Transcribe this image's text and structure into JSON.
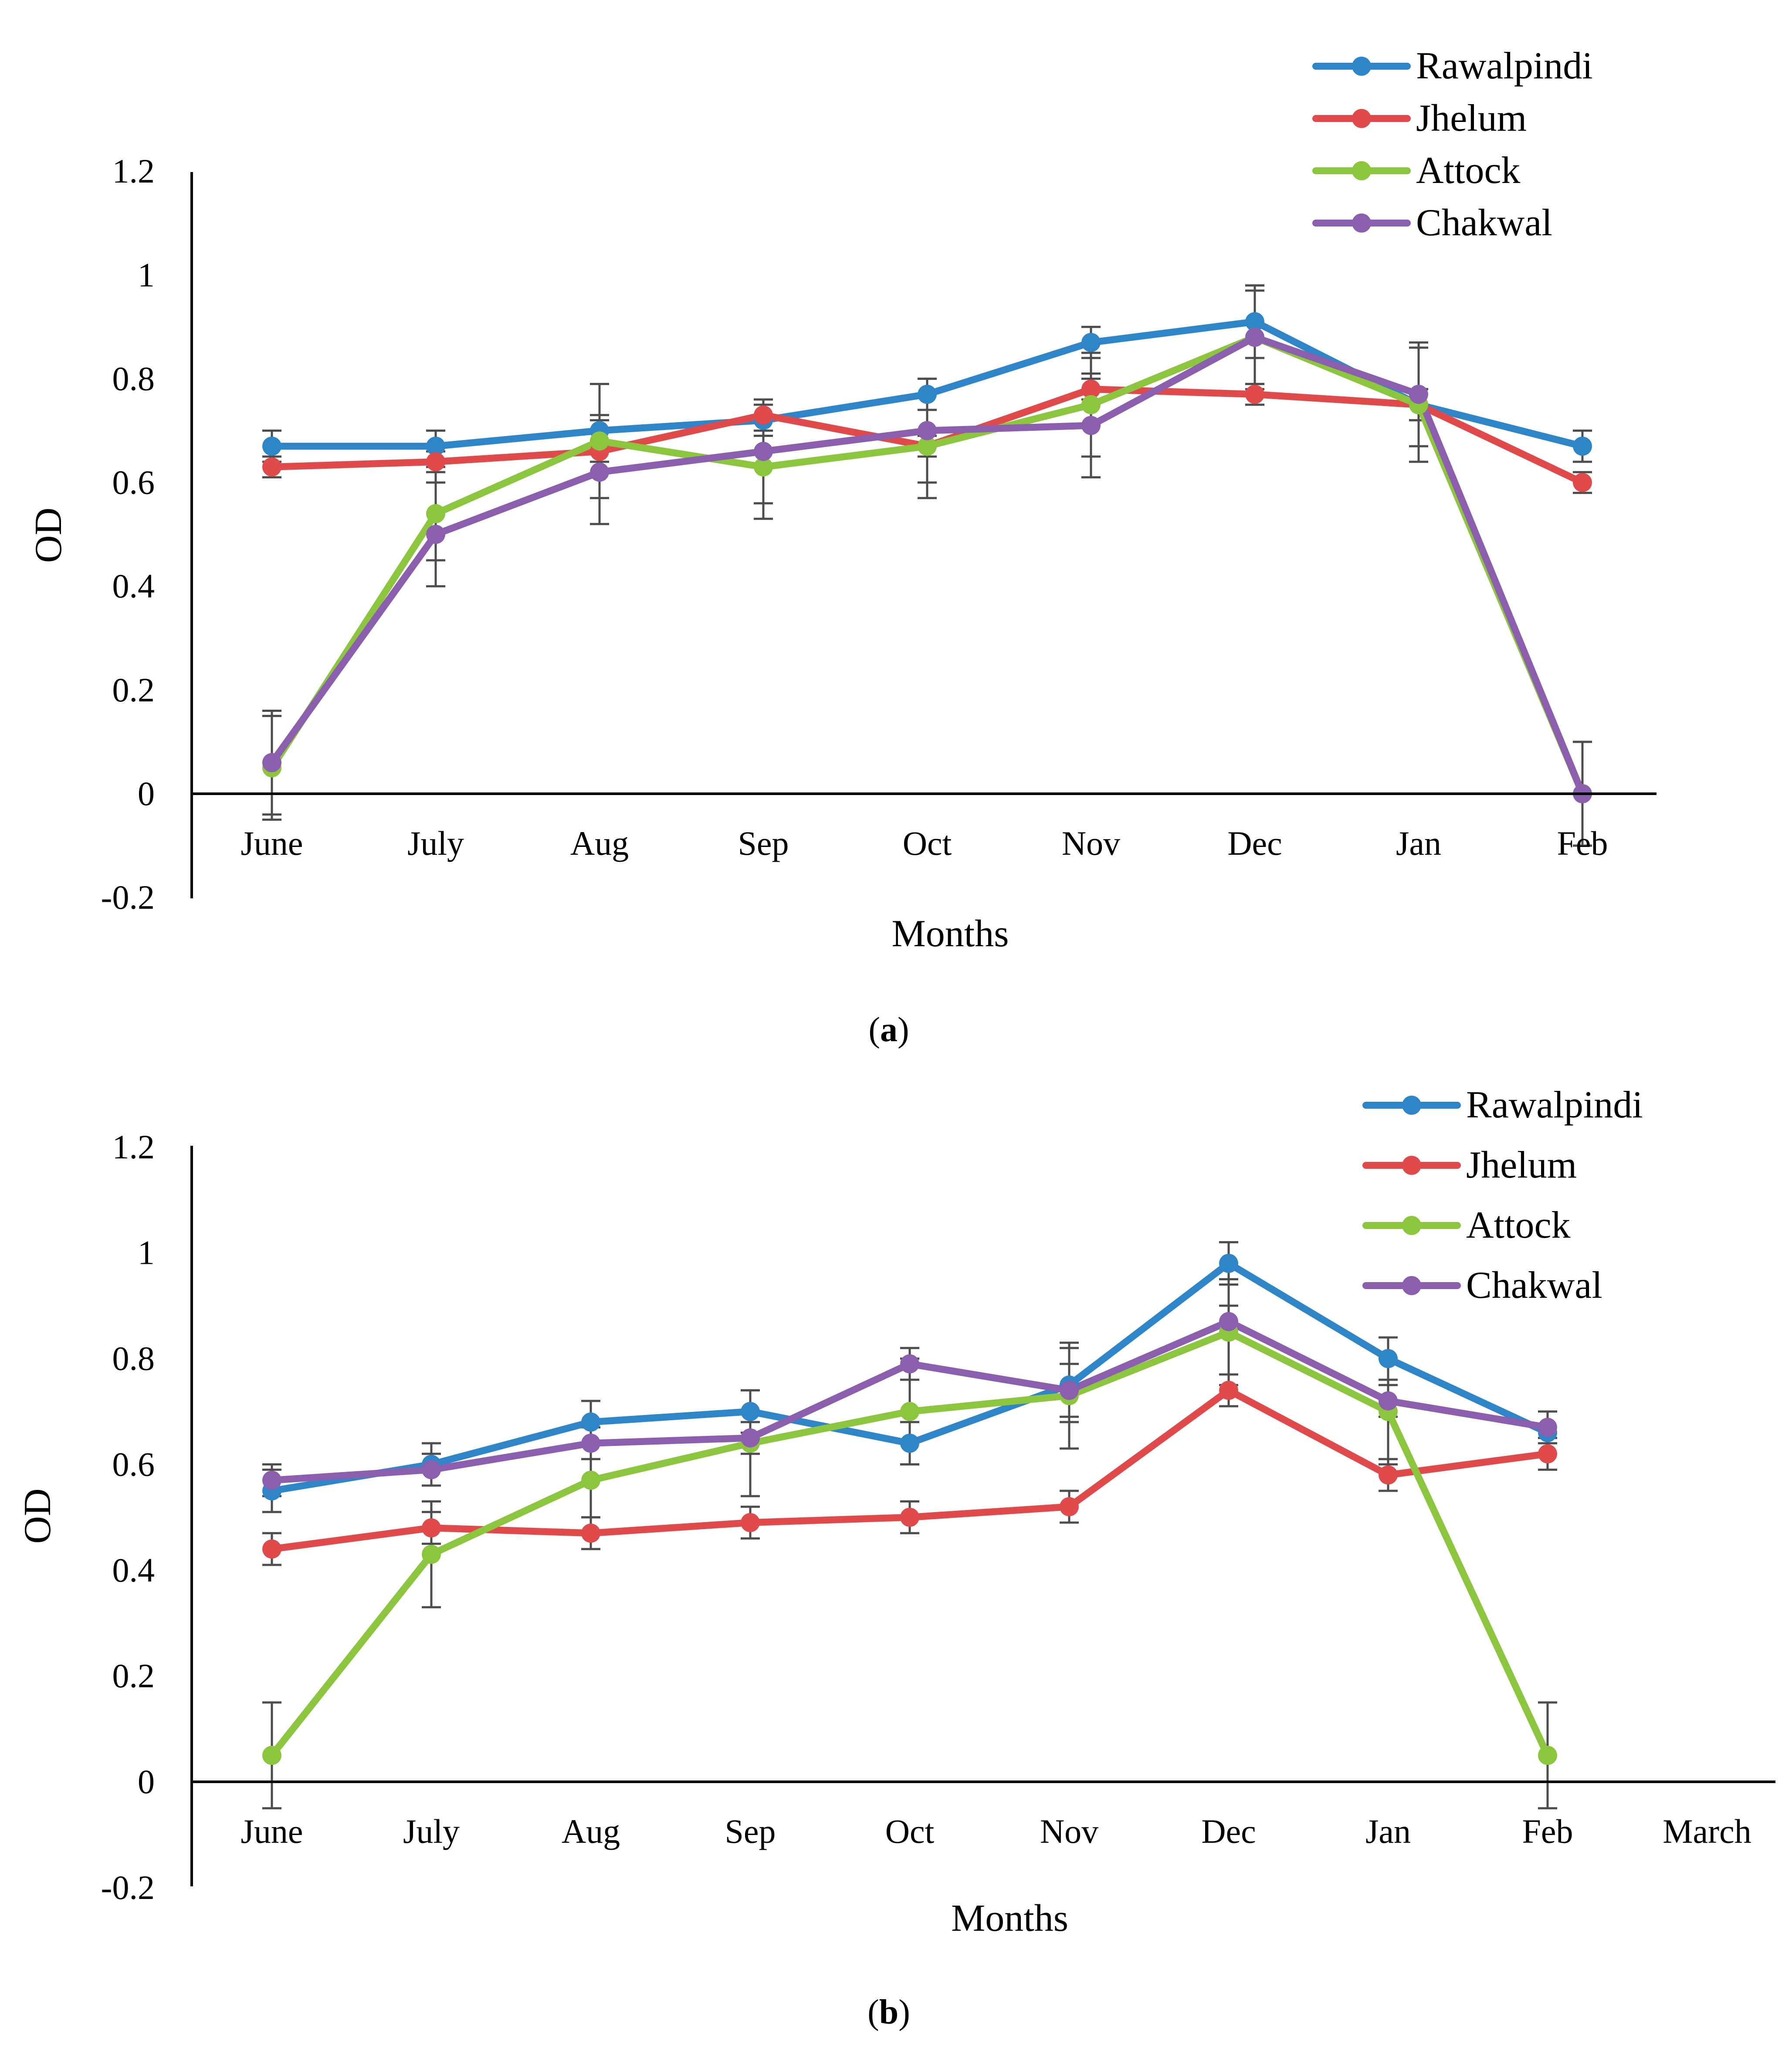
{
  "chart_data": [
    {
      "type": "line",
      "caption": "a",
      "xlabel": "Months",
      "ylabel": "OD",
      "ylim": [
        -0.2,
        1.2
      ],
      "yticks": [
        "1.2",
        "1",
        "0.8",
        "0.6",
        "0.4",
        "0.2",
        "0",
        "-0.2"
      ],
      "categories": [
        "June",
        "July",
        "Aug",
        "Sep",
        "Oct",
        "Nov",
        "Dec",
        "Jan",
        "Feb"
      ],
      "legend_position": "top-right",
      "series": [
        {
          "name": "Rawalpindi",
          "color": "#2e86c8",
          "values": [
            0.67,
            0.67,
            0.7,
            0.72,
            0.77,
            0.87,
            0.91,
            0.75,
            0.67
          ],
          "errors": [
            0.03,
            0.03,
            0.03,
            0.03,
            0.03,
            0.03,
            0.07,
            0.03,
            0.03
          ]
        },
        {
          "name": "Jhelum",
          "color": "#e04a4a",
          "values": [
            0.63,
            0.64,
            0.66,
            0.73,
            0.67,
            0.78,
            0.77,
            0.75,
            0.6
          ],
          "errors": [
            0.02,
            0.02,
            0.02,
            0.03,
            0.02,
            0.02,
            0.02,
            0.03,
            0.02
          ]
        },
        {
          "name": "Attock",
          "color": "#8cc63f",
          "values": [
            0.05,
            0.54,
            0.68,
            0.63,
            0.67,
            0.75,
            0.88,
            0.75,
            0.0
          ],
          "errors": [
            0.1,
            0.09,
            0.11,
            0.1,
            0.1,
            0.1,
            0.09,
            0.11,
            0.1
          ]
        },
        {
          "name": "Chakwal",
          "color": "#8b5fad",
          "values": [
            0.06,
            0.5,
            0.62,
            0.66,
            0.7,
            0.71,
            0.88,
            0.77,
            0.0
          ],
          "errors": [
            0.1,
            0.1,
            0.1,
            0.1,
            0.1,
            0.1,
            0.1,
            0.1,
            0.1
          ]
        }
      ]
    },
    {
      "type": "line",
      "caption": "b",
      "xlabel": "Months",
      "ylabel": "OD",
      "ylim": [
        -0.2,
        1.2
      ],
      "yticks": [
        "1.2",
        "1",
        "0.8",
        "0.6",
        "0.4",
        "0.2",
        "0",
        "-0.2"
      ],
      "categories": [
        "June",
        "July",
        "Aug",
        "Sep",
        "Oct",
        "Nov",
        "Dec",
        "Jan",
        "Feb",
        "March"
      ],
      "legend_position": "top-right",
      "series": [
        {
          "name": "Rawalpindi",
          "color": "#2e86c8",
          "values": [
            0.55,
            0.6,
            0.68,
            0.7,
            0.64,
            0.75,
            0.98,
            0.8,
            0.66,
            null
          ],
          "errors": [
            0.04,
            0.04,
            0.04,
            0.04,
            0.04,
            0.07,
            0.04,
            0.04,
            0.04,
            null
          ]
        },
        {
          "name": "Jhelum",
          "color": "#e04a4a",
          "values": [
            0.44,
            0.48,
            0.47,
            0.49,
            0.5,
            0.52,
            0.74,
            0.58,
            0.62,
            null
          ],
          "errors": [
            0.03,
            0.03,
            0.03,
            0.03,
            0.03,
            0.03,
            0.03,
            0.03,
            0.03,
            null
          ]
        },
        {
          "name": "Attock",
          "color": "#8cc63f",
          "values": [
            0.05,
            0.43,
            0.57,
            0.64,
            0.7,
            0.73,
            0.85,
            0.7,
            0.05,
            null
          ],
          "errors": [
            0.1,
            0.1,
            0.07,
            0.1,
            0.1,
            0.1,
            0.1,
            0.1,
            0.1,
            null
          ]
        },
        {
          "name": "Chakwal",
          "color": "#8b5fad",
          "values": [
            0.57,
            0.59,
            0.64,
            0.65,
            0.79,
            0.74,
            0.87,
            0.72,
            0.67,
            null
          ],
          "errors": [
            0.03,
            0.03,
            0.03,
            0.03,
            0.03,
            0.05,
            0.03,
            0.03,
            0.03,
            null
          ]
        }
      ]
    }
  ]
}
